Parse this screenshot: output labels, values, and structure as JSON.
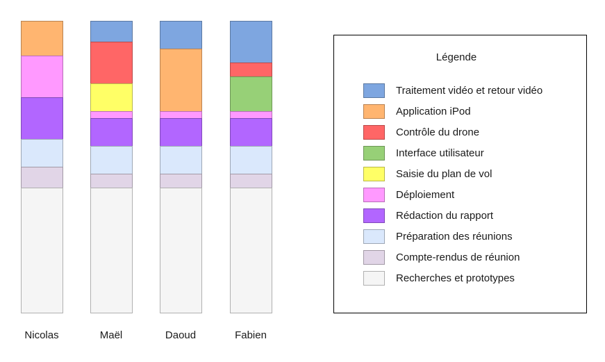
{
  "chart_data": {
    "type": "bar",
    "stacked": true,
    "orientation": "vertical",
    "categories": [
      "Nicolas",
      "Maël",
      "Daoud",
      "Fabien"
    ],
    "series": [
      {
        "name": "Traitement vidéo et retour vidéo",
        "color": "#7EA6E0",
        "values": [
          0,
          3,
          4,
          6
        ]
      },
      {
        "name": "Application iPod",
        "color": "#FFB570",
        "values": [
          5,
          0,
          9,
          0
        ]
      },
      {
        "name": "Contrôle du drone",
        "color": "#FF6666",
        "values": [
          0,
          6,
          0,
          2
        ]
      },
      {
        "name": "Interface utilisateur",
        "color": "#97D077",
        "values": [
          0,
          0,
          0,
          5
        ]
      },
      {
        "name": "Saisie du plan de vol",
        "color": "#FFFF66",
        "values": [
          0,
          4,
          0,
          0
        ]
      },
      {
        "name": "Déploiement",
        "color": "#FF99FF",
        "values": [
          6,
          1,
          1,
          1
        ]
      },
      {
        "name": "Rédaction du rapport",
        "color": "#B266FF",
        "values": [
          6,
          4,
          4,
          4
        ]
      },
      {
        "name": "Préparation des réunions",
        "color": "#DAE8FC",
        "values": [
          4,
          4,
          4,
          4
        ]
      },
      {
        "name": "Compte-rendus de réunion",
        "color": "#E1D5E7",
        "values": [
          3,
          2,
          2,
          2
        ]
      },
      {
        "name": "Recherches et prototypes",
        "color": "#F5F5F5",
        "values": [
          18,
          18,
          18,
          18
        ]
      }
    ],
    "legend": {
      "title": "Légende",
      "placement": "right"
    },
    "xlabel": "",
    "ylabel": "",
    "grid": false
  }
}
